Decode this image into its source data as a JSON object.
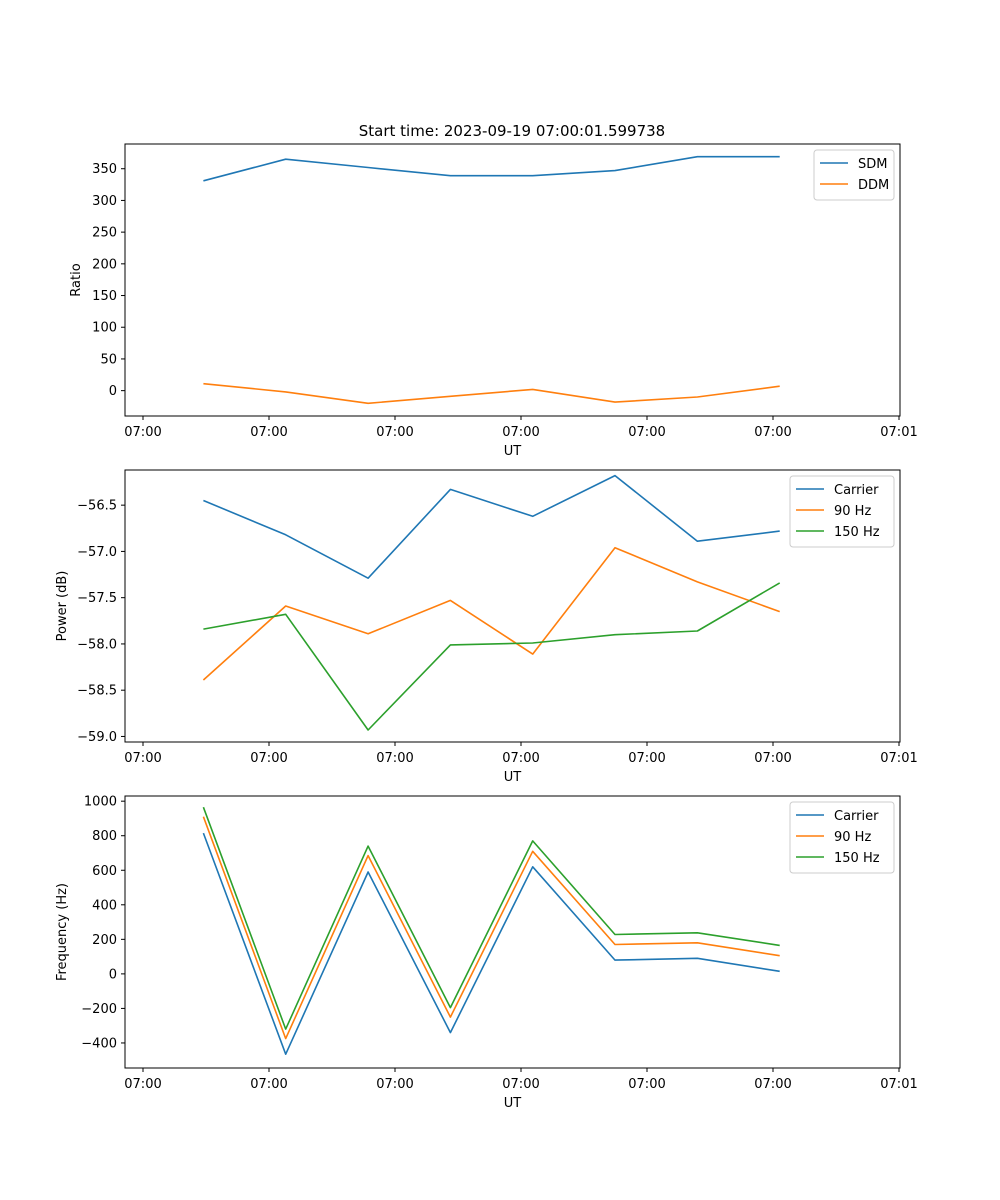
{
  "figure_title": "Start time: 2023-09-19 07:00:01.599738",
  "chart_data": [
    {
      "type": "line",
      "xlabel": "UT",
      "ylabel": "Ratio",
      "xtick_labels": [
        "07:00",
        "07:00",
        "07:00",
        "07:00",
        "07:00",
        "07:00",
        "07:01"
      ],
      "yticks": [
        0,
        50,
        100,
        150,
        200,
        250,
        300,
        350
      ],
      "ytick_labels": [
        "0",
        "50",
        "100",
        "150",
        "200",
        "250",
        "300",
        "350"
      ],
      "ylim": [
        -40,
        389
      ],
      "legend_position": "top-right",
      "series": [
        {
          "name": "SDM",
          "color": "#1f77b4",
          "values": [
            331,
            365,
            352,
            339,
            339,
            347,
            369,
            369
          ]
        },
        {
          "name": "DDM",
          "color": "#ff7f0e",
          "values": [
            11,
            -2,
            -20,
            -9,
            2,
            -18,
            -10,
            7
          ]
        }
      ]
    },
    {
      "type": "line",
      "xlabel": "UT",
      "ylabel": "Power (dB)",
      "xtick_labels": [
        "07:00",
        "07:00",
        "07:00",
        "07:00",
        "07:00",
        "07:00",
        "07:01"
      ],
      "yticks": [
        -59.0,
        -58.5,
        -58.0,
        -57.5,
        -57.0,
        -56.5
      ],
      "ytick_labels": [
        "−59.0",
        "−58.5",
        "−58.0",
        "−57.5",
        "−57.0",
        "−56.5"
      ],
      "ylim": [
        -59.06,
        -56.12
      ],
      "legend_position": "top-right",
      "series": [
        {
          "name": "Carrier",
          "color": "#1f77b4",
          "values": [
            -56.45,
            -56.82,
            -57.29,
            -56.33,
            -56.62,
            -56.18,
            -56.89,
            -56.78
          ]
        },
        {
          "name": "90 Hz",
          "color": "#ff7f0e",
          "values": [
            -58.39,
            -57.59,
            -57.89,
            -57.53,
            -58.11,
            -56.96,
            -57.33,
            -57.65
          ]
        },
        {
          "name": "150 Hz",
          "color": "#2ca02c",
          "values": [
            -57.84,
            -57.68,
            -58.93,
            -58.01,
            -57.99,
            -57.9,
            -57.86,
            -57.34
          ]
        }
      ]
    },
    {
      "type": "line",
      "xlabel": "UT",
      "ylabel": "Frequency (Hz)",
      "xtick_labels": [
        "07:00",
        "07:00",
        "07:00",
        "07:00",
        "07:00",
        "07:00",
        "07:01"
      ],
      "yticks": [
        -400,
        -200,
        0,
        200,
        400,
        600,
        800,
        1000
      ],
      "ytick_labels": [
        "−400",
        "−200",
        "0",
        "200",
        "400",
        "600",
        "800",
        "1000"
      ],
      "ylim": [
        -545,
        1030
      ],
      "legend_position": "top-right",
      "series": [
        {
          "name": "Carrier",
          "color": "#1f77b4",
          "values": [
            815,
            -465,
            590,
            -340,
            620,
            80,
            90,
            15
          ]
        },
        {
          "name": "90 Hz",
          "color": "#ff7f0e",
          "values": [
            910,
            -375,
            685,
            -250,
            710,
            170,
            180,
            105
          ]
        },
        {
          "name": "150 Hz",
          "color": "#2ca02c",
          "values": [
            965,
            -320,
            740,
            -195,
            770,
            228,
            238,
            165
          ]
        }
      ]
    }
  ]
}
